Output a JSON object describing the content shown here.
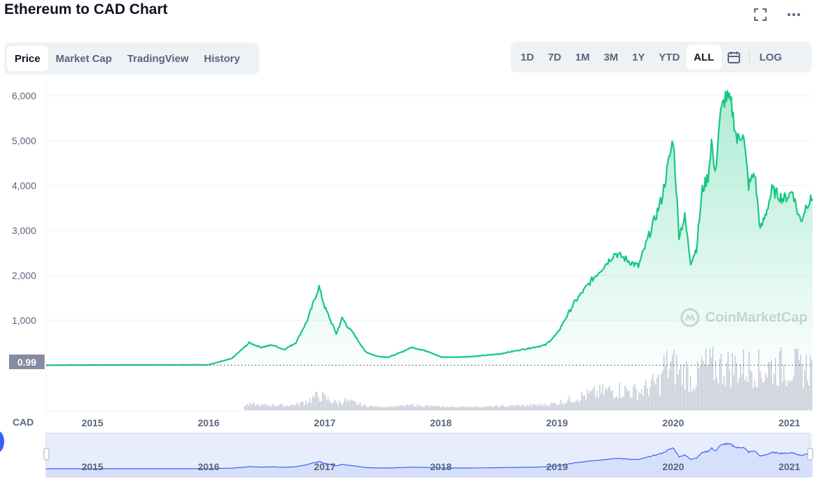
{
  "title": "Ethereum to CAD Chart",
  "header_icons": {
    "fullscreen": "fullscreen-icon",
    "more": "more-icon"
  },
  "tabs": [
    {
      "label": "Price",
      "active": true
    },
    {
      "label": "Market Cap",
      "active": false
    },
    {
      "label": "TradingView",
      "active": false
    },
    {
      "label": "History",
      "active": false
    }
  ],
  "ranges": [
    {
      "label": "1D",
      "active": false
    },
    {
      "label": "7D",
      "active": false
    },
    {
      "label": "1M",
      "active": false
    },
    {
      "label": "3M",
      "active": false
    },
    {
      "label": "1Y",
      "active": false
    },
    {
      "label": "YTD",
      "active": false
    },
    {
      "label": "ALL",
      "active": true
    }
  ],
  "calendar_icon": "calendar-icon",
  "log_label": "LOG",
  "currency_label": "CAD",
  "current_price_label": "0.99",
  "watermark": "CoinMarketCap",
  "colors": {
    "line": "#16c784",
    "volume": "#c5cbd6",
    "navigator_line": "#3861fb",
    "navigator_fill": "#e8edfd"
  },
  "chart_data": {
    "type": "line",
    "title": "Ethereum to CAD Chart",
    "xlabel": "",
    "ylabel": "CAD",
    "ylim": [
      -10,
      6350
    ],
    "xlim": [
      2014.6,
      2021.2
    ],
    "yticks": [
      {
        "value": 1000,
        "label": "1,000"
      },
      {
        "value": 2000,
        "label": "2,000"
      },
      {
        "value": 3000,
        "label": "3,000"
      },
      {
        "value": 4000,
        "label": "4,000"
      },
      {
        "value": 5000,
        "label": "5,000"
      },
      {
        "value": 6000,
        "label": "6,000"
      }
    ],
    "xticks": [
      "2015",
      "2016",
      "2017",
      "2018",
      "2019",
      "2020",
      "2021"
    ],
    "series": [
      {
        "x": [
          2014.6,
          2015.0,
          2015.5,
          2016.0,
          2016.2,
          2016.35,
          2016.45,
          2016.55,
          2016.65,
          2016.75,
          2016.85,
          2016.95,
          2017.0,
          2017.05,
          2017.1,
          2017.15,
          2017.2,
          2017.25,
          2017.3,
          2017.35,
          2017.45,
          2017.55,
          2017.65,
          2017.75,
          2017.9,
          2018.0,
          2018.15,
          2018.3,
          2018.5,
          2018.7,
          2018.9,
          2019.0,
          2019.15,
          2019.3,
          2019.5,
          2019.7,
          2019.9,
          2020.0,
          2020.05,
          2020.1,
          2020.15,
          2020.2,
          2020.25,
          2020.3,
          2020.33,
          2020.36,
          2020.4,
          2020.45,
          2020.5,
          2020.55,
          2020.6,
          2020.65,
          2020.7,
          2020.75,
          2020.8,
          2020.85,
          2020.9,
          2020.95,
          2021.0,
          2021.03,
          2021.06,
          2021.1,
          2021.15,
          2021.2
        ],
        "y": [
          1,
          5,
          8,
          10,
          150,
          500,
          400,
          450,
          350,
          500,
          1000,
          1750,
          1300,
          1000,
          700,
          1050,
          850,
          700,
          500,
          300,
          200,
          180,
          280,
          400,
          300,
          180,
          180,
          200,
          250,
          350,
          450,
          700,
          1400,
          1900,
          2500,
          2200,
          3700,
          5050,
          2900,
          3300,
          2300,
          2600,
          3900,
          4200,
          5000,
          4200,
          5500,
          6000,
          5800,
          5000,
          5200,
          4000,
          4300,
          3000,
          3400,
          3900,
          3800,
          3700,
          3800,
          3900,
          3500,
          3200,
          3600,
          3700
        ]
      }
    ]
  }
}
